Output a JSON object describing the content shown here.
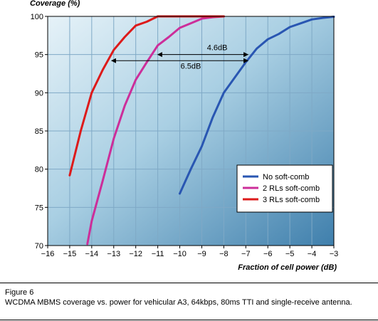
{
  "chart_data": {
    "type": "line",
    "ylabel": "Coverage (%)",
    "xlabel": "Fraction of cell power (dB)",
    "xlim": [
      -16,
      -3
    ],
    "ylim": [
      70,
      100
    ],
    "xticks": [
      -16,
      -15,
      -14,
      -13,
      -12,
      -11,
      -10,
      -9,
      -8,
      -7,
      -6,
      -5,
      -4,
      -3
    ],
    "yticks": [
      70,
      75,
      80,
      85,
      90,
      95,
      100
    ],
    "xtick_labels": [
      "−16",
      "−15",
      "−14",
      "−13",
      "−12",
      "−11",
      "−10",
      "−9",
      "−8",
      "−7",
      "−6",
      "−5",
      "−4",
      "−3"
    ],
    "grid": true,
    "legend_position": "lower-right",
    "series": [
      {
        "name": "No soft-comb",
        "color": "#2956b2",
        "x": [
          -10,
          -9.5,
          -9,
          -8.5,
          -8,
          -7.5,
          -7,
          -6.5,
          -6,
          -5.5,
          -5,
          -4.5,
          -4,
          -3.5,
          -3
        ],
        "y": [
          76.8,
          80,
          83,
          86.8,
          90,
          92,
          94,
          95.8,
          97,
          97.7,
          98.6,
          99.1,
          99.6,
          99.8,
          99.95
        ]
      },
      {
        "name": "2 RLs soft-comb",
        "color": "#cc2e9a",
        "x": [
          -14.2,
          -14,
          -13.5,
          -13,
          -12.5,
          -12,
          -11.5,
          -11,
          -10.5,
          -10,
          -9.5,
          -9,
          -8.5,
          -8
        ],
        "y": [
          70.2,
          73.2,
          78.5,
          84,
          88.3,
          91.7,
          94,
          96.2,
          97.3,
          98.5,
          99.1,
          99.7,
          99.9,
          100
        ]
      },
      {
        "name": "3 RLs soft-comb",
        "color": "#dd1a1a",
        "x": [
          -15,
          -14.5,
          -14,
          -13.5,
          -13,
          -12.5,
          -12,
          -11.5,
          -11,
          -10.5,
          -10,
          -9,
          -8
        ],
        "y": [
          79.2,
          85,
          90,
          93,
          95.6,
          97.3,
          98.8,
          99.3,
          100,
          100,
          100,
          100,
          100
        ]
      }
    ],
    "annotations": [
      {
        "text": "4.6dB",
        "from_x": -11.0,
        "to_x": -6.9,
        "y": 95
      },
      {
        "text": "6.5dB",
        "from_x": -13.1,
        "to_x": -6.9,
        "y": 94.2
      }
    ]
  },
  "figure": {
    "number": "Figure 6",
    "caption": "WCDMA MBMS coverage vs. power for vehicular A3, 64kbps, 80ms TTI and single-receive antenna."
  }
}
